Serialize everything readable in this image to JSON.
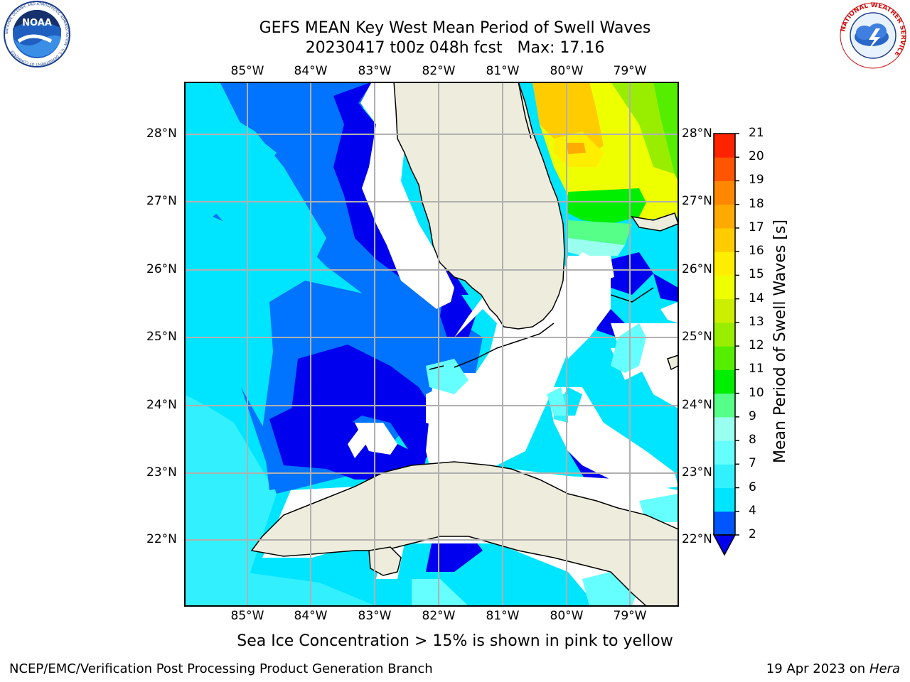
{
  "header": {
    "title_line1": "GEFS MEAN Key West Mean Period of Swell Waves",
    "title_line2": "20230417 t00z 048h fcst   Max: 17.16"
  },
  "logos": {
    "noaa_text": "NOAA",
    "noaa_ring_text": "NATIONAL OCEANIC AND ATMOSPHERIC ADMINISTRATION · U.S. DEPARTMENT OF COMMERCE",
    "nws_ring_text": "NATIONAL WEATHER SERVICE"
  },
  "map": {
    "lon_labels": [
      "85°W",
      "84°W",
      "83°W",
      "82°W",
      "81°W",
      "80°W",
      "79°W"
    ],
    "lat_labels": [
      "28°N",
      "27°N",
      "26°N",
      "25°N",
      "24°N",
      "23°N",
      "22°N"
    ],
    "caption": "Sea Ice Concentration > 15% is shown in pink to yellow"
  },
  "colorbar": {
    "label": "Mean Period of Swell Waves [s]",
    "ticks": [
      "2",
      "4",
      "6",
      "7",
      "8",
      "9",
      "10",
      "11",
      "12",
      "13",
      "14",
      "15",
      "16",
      "17",
      "18",
      "19",
      "20",
      "21"
    ],
    "colors": [
      "#0055ff",
      "#00e5ff",
      "#33f0ff",
      "#66ffff",
      "#99ffee",
      "#55ff88",
      "#00ee00",
      "#55ee00",
      "#99ee00",
      "#ccee00",
      "#eeff00",
      "#ffee00",
      "#ffcc00",
      "#ffaa00",
      "#ff8800",
      "#ff5500",
      "#ff2200",
      "#ff0000"
    ],
    "under_color": "#0000ee"
  },
  "footer": {
    "left": "NCEP/EMC/Verification Post Processing Product Generation Branch",
    "right_prefix": "19 Apr 2023 on ",
    "right_machine": "Hera"
  }
}
